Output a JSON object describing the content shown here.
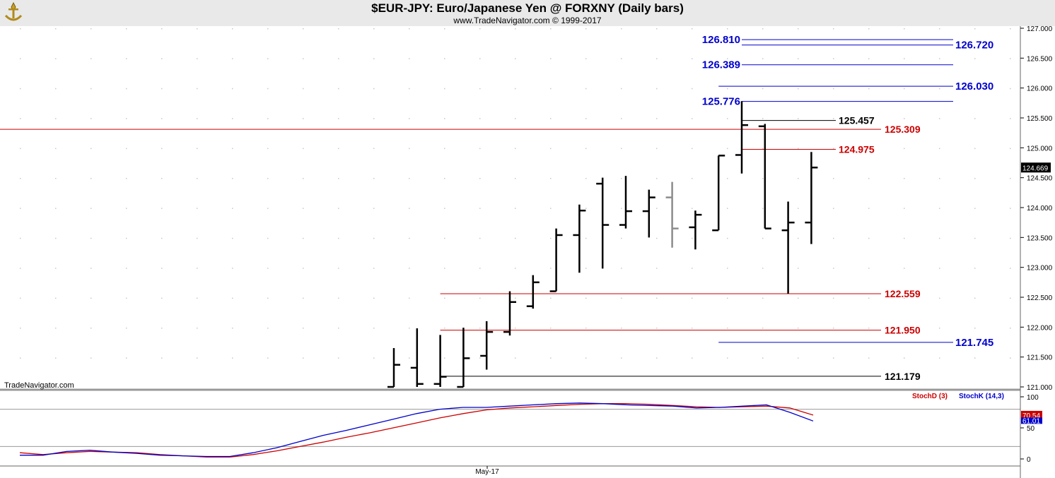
{
  "header": {
    "title": "$EUR-JPY:  Euro/Japanese Yen @ FORXNY  (Daily bars)",
    "subtitle": "www.TradeNavigator.com © 1999-2017"
  },
  "watermark": "TradeNavigator.com",
  "colors": {
    "header_bg": "#e9e9e9",
    "bar": "#000000",
    "bar_highlight": "#8c8c8c",
    "red_level": "#cc0000",
    "blue_level": "#0000cc",
    "black_level": "#000000",
    "stoch_d": "#cc0000",
    "stoch_k": "#0000cc",
    "grid_dot": "#c8c8c8"
  },
  "chart_data": [
    {
      "type": "ohlc",
      "panel": "price",
      "ylim": [
        121.0,
        127.1
      ],
      "y_ticks": [
        "121.000",
        "121.500",
        "122.000",
        "122.500",
        "123.000",
        "123.500",
        "124.000",
        "124.500",
        "125.000",
        "125.500",
        "126.000",
        "126.500",
        "127.000"
      ],
      "x_tick_labels": [
        "May-17"
      ],
      "last_price_label": "124.669",
      "bars": [
        {
          "open": 121.0,
          "high": 121.65,
          "low": 121.0,
          "close": 121.37
        },
        {
          "open": 121.32,
          "high": 121.98,
          "low": 121.0,
          "close": 121.05
        },
        {
          "open": 121.05,
          "high": 121.87,
          "low": 121.0,
          "close": 121.17
        },
        {
          "open": 121.0,
          "high": 121.99,
          "low": 121.0,
          "close": 121.48
        },
        {
          "open": 121.52,
          "high": 122.1,
          "low": 121.29,
          "close": 121.92
        },
        {
          "open": 121.92,
          "high": 122.6,
          "low": 121.86,
          "close": 122.42
        },
        {
          "open": 122.35,
          "high": 122.87,
          "low": 122.31,
          "close": 122.75
        },
        {
          "open": 122.6,
          "high": 123.65,
          "low": 122.6,
          "close": 123.54
        },
        {
          "open": 123.54,
          "high": 124.05,
          "low": 122.91,
          "close": 123.95
        },
        {
          "open": 124.4,
          "high": 124.5,
          "low": 122.98,
          "close": 123.71
        },
        {
          "open": 123.71,
          "high": 124.53,
          "low": 123.65,
          "close": 123.94
        },
        {
          "open": 123.94,
          "high": 124.3,
          "low": 123.5,
          "close": 124.17
        },
        {
          "open": 124.17,
          "high": 124.43,
          "low": 123.33,
          "close": 123.65,
          "highlight": true
        },
        {
          "open": 123.67,
          "high": 123.95,
          "low": 123.3,
          "close": 123.88
        },
        {
          "open": 123.62,
          "high": 124.87,
          "low": 123.62,
          "close": 124.87
        },
        {
          "open": 124.88,
          "high": 125.78,
          "low": 124.57,
          "close": 125.38
        },
        {
          "open": 125.36,
          "high": 125.4,
          "low": 123.65,
          "close": 123.65
        },
        {
          "open": 123.62,
          "high": 124.1,
          "low": 122.56,
          "close": 123.75
        },
        {
          "open": 123.75,
          "high": 124.93,
          "low": 123.39,
          "close": 124.67
        }
      ],
      "levels": [
        {
          "value": 126.81,
          "label": "126.810",
          "color": "blue",
          "side": "left",
          "start_bar": 15
        },
        {
          "value": 126.72,
          "label": "126.720",
          "color": "blue",
          "side": "right",
          "start_bar": 15
        },
        {
          "value": 126.389,
          "label": "126.389",
          "color": "blue",
          "side": "left",
          "start_bar": 15
        },
        {
          "value": 126.03,
          "label": "126.030",
          "color": "blue",
          "side": "right",
          "start_bar": 14
        },
        {
          "value": 125.776,
          "label": "125.776",
          "color": "blue",
          "side": "left",
          "start_bar": 15
        },
        {
          "value": 125.457,
          "label": "125.457",
          "color": "black",
          "side": "mid",
          "start_bar": 15
        },
        {
          "value": 125.309,
          "label": "125.309",
          "color": "red",
          "side": "right",
          "start_bar": -1
        },
        {
          "value": 124.975,
          "label": "124.975",
          "color": "red",
          "side": "mid",
          "start_bar": 15
        },
        {
          "value": 122.559,
          "label": "122.559",
          "color": "red",
          "side": "right",
          "start_bar": 2
        },
        {
          "value": 121.95,
          "label": "121.950",
          "color": "red",
          "side": "right",
          "start_bar": 2
        },
        {
          "value": 121.745,
          "label": "121.745",
          "color": "blue",
          "side": "right",
          "start_bar": 14
        },
        {
          "value": 121.179,
          "label": "121.179",
          "color": "black",
          "side": "right",
          "start_bar": 2
        }
      ]
    },
    {
      "type": "line",
      "panel": "stochastic",
      "ylim": [
        0,
        100
      ],
      "y_ticks": [
        "0",
        "50",
        "100"
      ],
      "reference_lines": [
        20,
        80
      ],
      "value_labels": {
        "stoch_d": "70.54",
        "stoch_k": "61.01"
      },
      "series": [
        {
          "name": "StochD (3)",
          "color": "red",
          "x": [
            0,
            1,
            2,
            3,
            4,
            5,
            6,
            7,
            8,
            9,
            10,
            11,
            12,
            13,
            14,
            15,
            16,
            17,
            18,
            19,
            20,
            21,
            22,
            23,
            24,
            25,
            26,
            27,
            28,
            29,
            30,
            31,
            32,
            33,
            34
          ],
          "values": [
            10,
            7,
            10,
            12,
            11,
            10,
            7,
            5,
            3,
            3,
            7,
            13,
            20,
            27,
            35,
            42,
            50,
            58,
            66,
            73,
            79,
            82,
            84,
            86,
            88,
            89,
            89,
            88,
            86,
            84,
            83,
            84,
            85,
            82,
            70.54
          ]
        },
        {
          "name": "StochK (14,3)",
          "color": "blue",
          "x": [
            0,
            1,
            2,
            3,
            4,
            5,
            6,
            7,
            8,
            9,
            10,
            11,
            12,
            13,
            14,
            15,
            16,
            17,
            18,
            19,
            20,
            21,
            22,
            23,
            24,
            25,
            26,
            27,
            28,
            29,
            30,
            31,
            32,
            33,
            34
          ],
          "values": [
            6,
            6,
            12,
            14,
            11,
            9,
            6,
            5,
            4,
            4,
            10,
            18,
            28,
            38,
            46,
            55,
            64,
            73,
            80,
            83,
            83,
            85,
            87,
            89,
            90,
            89,
            87,
            86,
            85,
            82,
            83,
            85,
            87,
            75,
            61.01
          ]
        }
      ]
    }
  ]
}
